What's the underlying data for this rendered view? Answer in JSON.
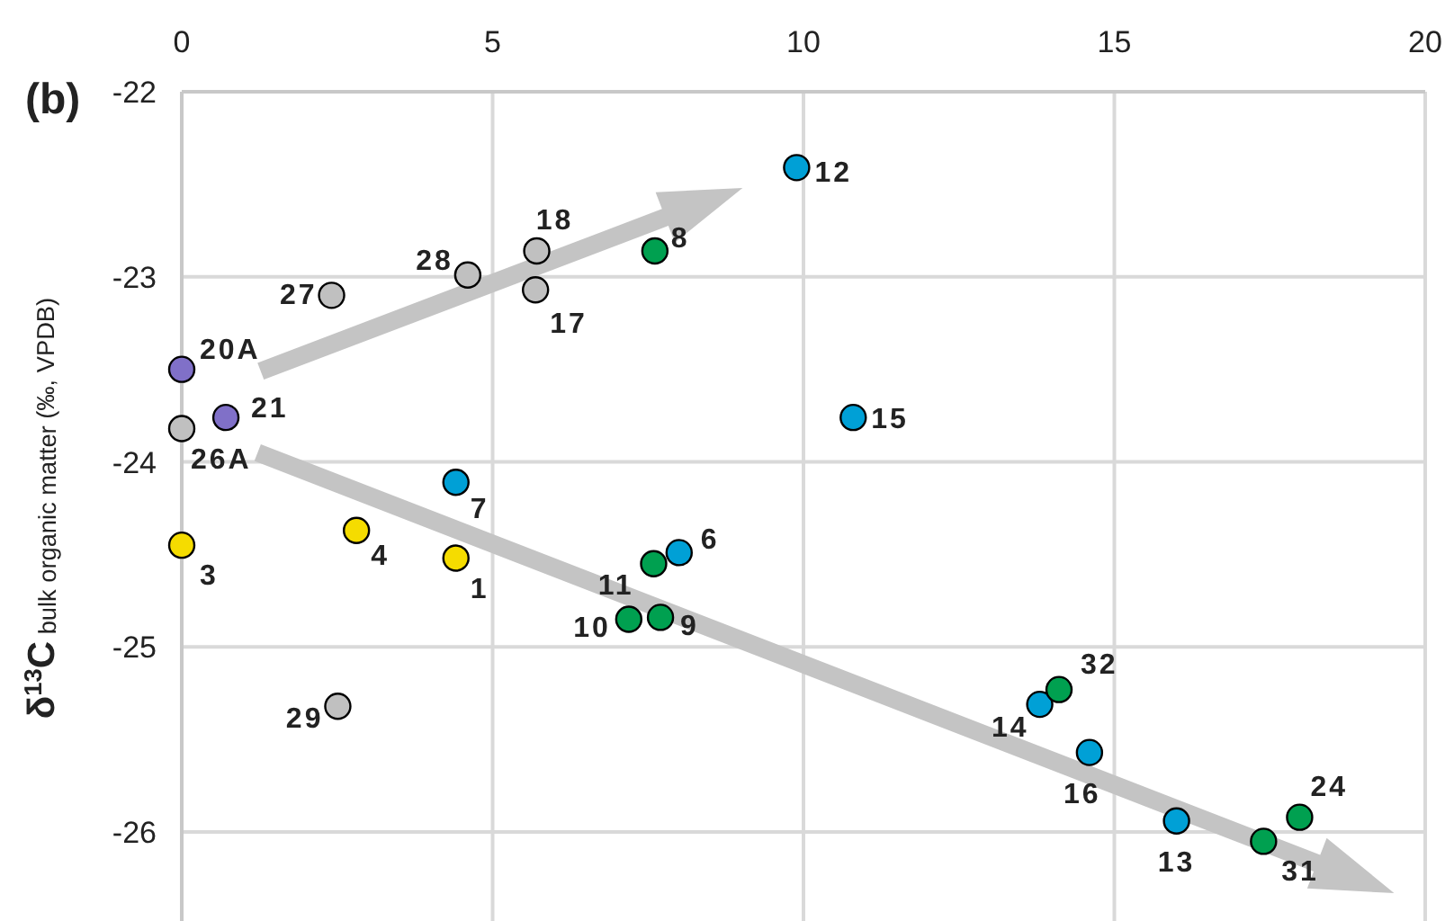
{
  "chart_data": {
    "type": "scatter",
    "title": "(b)",
    "ylabel": "δ$^{13}$C$_{bulk organic matter}$ (‰, VPDB)",
    "xlim": [
      0,
      20
    ],
    "xticks": [
      0,
      5,
      10,
      15,
      20
    ],
    "ylim": [
      -26.5,
      -22
    ],
    "yticks": [
      -22,
      -23,
      -24,
      -25,
      -26
    ],
    "grid": true,
    "marker": "circle",
    "series": [
      {
        "color": "#c0c0c0",
        "x": [
          5.71,
          4.6,
          5.69,
          2.41,
          0,
          2.51
        ],
        "values": [
          -22.86,
          -22.99,
          -23.07,
          -23.1,
          -23.82,
          -25.32
        ]
      },
      {
        "color": "#8070c8",
        "x": [
          0,
          0.71
        ],
        "values": [
          -23.5,
          -23.76
        ]
      },
      {
        "color": "#f5dc00",
        "x": [
          4.41,
          2.81,
          0
        ],
        "values": [
          -24.52,
          -24.37,
          -24.45
        ]
      },
      {
        "color": "#00a0d6",
        "x": [
          9.89,
          10.8,
          4.41,
          8.0,
          13.8,
          14.6,
          16.0
        ],
        "values": [
          -22.41,
          -23.76,
          -24.11,
          -24.49,
          -25.31,
          -25.57,
          -25.94
        ]
      },
      {
        "color": "#00a050",
        "x": [
          7.61,
          7.59,
          7.19,
          7.7,
          14.11,
          17.4,
          17.98
        ],
        "values": [
          -22.86,
          -24.55,
          -24.85,
          -24.84,
          -25.23,
          -26.05,
          -25.92
        ]
      }
    ],
    "annotations": [
      {
        "text": "1",
        "x": 4.41,
        "y": -24.52
      },
      {
        "text": "3",
        "x": 0,
        "y": -24.45
      },
      {
        "text": "4",
        "x": 2.81,
        "y": -24.37
      },
      {
        "text": "6",
        "x": 8.0,
        "y": -24.49
      },
      {
        "text": "7",
        "x": 4.41,
        "y": -24.11
      },
      {
        "text": "8",
        "x": 7.61,
        "y": -22.86
      },
      {
        "text": "9",
        "x": 7.7,
        "y": -24.84
      },
      {
        "text": "10",
        "x": 7.19,
        "y": -24.85
      },
      {
        "text": "11",
        "x": 7.59,
        "y": -24.55
      },
      {
        "text": "12",
        "x": 9.89,
        "y": -22.41
      },
      {
        "text": "13",
        "x": 16.0,
        "y": -25.94
      },
      {
        "text": "14",
        "x": 13.8,
        "y": -25.31
      },
      {
        "text": "15",
        "x": 10.8,
        "y": -23.76
      },
      {
        "text": "16",
        "x": 14.6,
        "y": -25.57
      },
      {
        "text": "17",
        "x": 5.69,
        "y": -23.07
      },
      {
        "text": "18",
        "x": 5.71,
        "y": -22.86
      },
      {
        "text": "20A",
        "x": 0,
        "y": -23.5
      },
      {
        "text": "21",
        "x": 0.71,
        "y": -23.76
      },
      {
        "text": "24",
        "x": 17.98,
        "y": -25.92
      },
      {
        "text": "26A",
        "x": 0,
        "y": -23.82
      },
      {
        "text": "27",
        "x": 2.41,
        "y": -23.1
      },
      {
        "text": "28",
        "x": 4.6,
        "y": -22.99
      },
      {
        "text": "29",
        "x": 2.51,
        "y": -25.32
      },
      {
        "text": "31",
        "x": 17.4,
        "y": -26.05
      },
      {
        "text": "32",
        "x": 14.11,
        "y": -25.23
      }
    ]
  }
}
